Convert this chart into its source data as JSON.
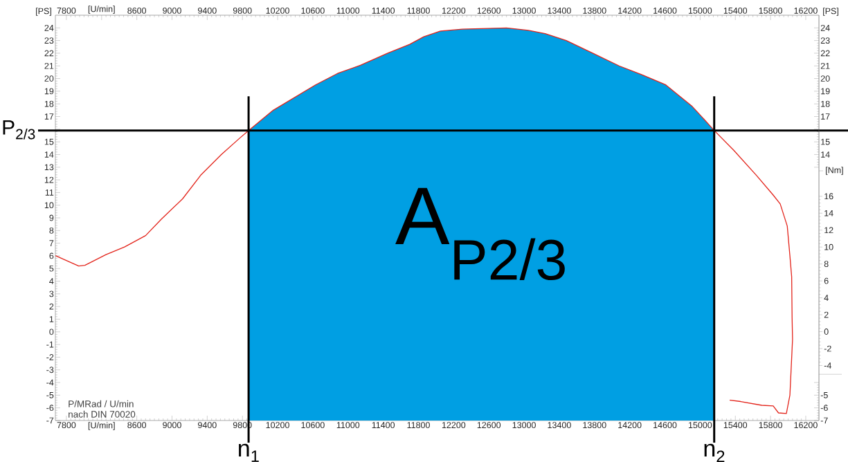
{
  "chart_data": {
    "type": "line",
    "xlim": [
      7675,
      16350
    ],
    "xticks": [
      7800,
      {
        "value": 8200,
        "label": "[U/min]"
      },
      8600,
      9000,
      9400,
      9800,
      10200,
      10600,
      11000,
      11400,
      11800,
      12200,
      12600,
      13000,
      13400,
      13800,
      14200,
      14600,
      15000,
      15400,
      15800,
      16200
    ],
    "x2lim": [
      7675,
      16350
    ],
    "x2ticks": [
      7800,
      {
        "value": 8200,
        "label": "[U/min]"
      },
      8600,
      9000,
      9400,
      9800,
      10200,
      10600,
      11000,
      11400,
      11800,
      12200,
      12600,
      13000,
      13400,
      13800,
      14200,
      14600,
      15000,
      15400,
      15800,
      16200
    ],
    "ylim": [
      -7,
      25
    ],
    "yticks": [
      -7,
      -6,
      -5,
      -4,
      -3,
      -2,
      -1,
      0,
      1,
      2,
      3,
      4,
      5,
      6,
      7,
      8,
      9,
      10,
      11,
      12,
      13,
      14,
      15,
      {
        "value": 16,
        "label": null
      },
      17,
      18,
      19,
      20,
      21,
      22,
      23,
      24
    ],
    "ylabel": "[PS]",
    "y2lim": [
      -7,
      25
    ],
    "y2ticks": [
      -7,
      -6,
      -5,
      {
        "value": -4,
        "label": null
      },
      {
        "value": 13,
        "label": null
      },
      14,
      15,
      {
        "value": 16,
        "label": null
      },
      17,
      18,
      19,
      20,
      21,
      22,
      23,
      24
    ],
    "y2label": "[PS]",
    "y3lim": [
      -10.5,
      37.4
    ],
    "y3ticks": [
      -4,
      -2,
      0,
      2,
      4,
      6,
      8,
      10,
      12,
      14,
      16
    ],
    "y3label": "[Nm]",
    "series": [
      {
        "type": "area",
        "name": "A$_{P2/3}$",
        "color": "#009fe3",
        "x": [
          9870,
          9870,
          10150,
          10630,
          10880,
          11140,
          11450,
          11700,
          11860,
          12050,
          12300,
          12800,
          13050,
          13240,
          13480,
          13780,
          14080,
          14340,
          14610,
          14750,
          14910,
          15030,
          15160,
          15160
        ],
        "values": [
          -7,
          15.9,
          17.5,
          19.5,
          20.4,
          21.05,
          22.0,
          22.7,
          23.3,
          23.75,
          23.9,
          24.0,
          23.8,
          23.55,
          23.0,
          22.0,
          21.0,
          20.3,
          19.5,
          18.7,
          17.8,
          16.9,
          15.9,
          -7
        ]
      },
      {
        "color": "#e3241b",
        "x": [
          7680,
          7940,
          8010,
          8250,
          8460,
          8700,
          8880,
          9120,
          9330,
          9560,
          9770,
          9870,
          10150,
          10630,
          10880,
          11140,
          11450,
          11700,
          11860,
          12050,
          12300,
          12800,
          13050,
          13240,
          13480,
          13780,
          14080,
          14340,
          14610,
          14750,
          14910,
          15030,
          15160,
          15380,
          15640,
          15830,
          15910,
          15990,
          16020,
          16040,
          16045,
          16050,
          16020,
          15980,
          15890,
          15830,
          15700,
          15460,
          15340
        ],
        "values": [
          6.0,
          5.2,
          5.25,
          6.1,
          6.7,
          7.6,
          8.9,
          10.5,
          12.4,
          14.0,
          15.3,
          15.9,
          17.5,
          19.5,
          20.4,
          21.05,
          22.0,
          22.7,
          23.3,
          23.75,
          23.9,
          24.0,
          23.8,
          23.55,
          23.0,
          22.0,
          21.0,
          20.3,
          19.5,
          18.7,
          17.8,
          16.9,
          15.9,
          14.35,
          12.35,
          10.8,
          10.1,
          8.35,
          6.0,
          4.35,
          1.1,
          -0.6,
          -5.0,
          -6.45,
          -6.4,
          -5.85,
          -5.8,
          -5.5,
          -5.4
        ]
      }
    ],
    "ref_lines": [
      {
        "axis": "y",
        "value": 15.9,
        "label": "P$_{2/3}$",
        "color": "#000000"
      },
      {
        "axis": "x",
        "value": 9870,
        "label": "n$_{1}$",
        "color": "#000000"
      },
      {
        "axis": "x",
        "value": 15160,
        "label": "n$_{2}$",
        "color": "#000000"
      }
    ],
    "annotations": [
      "P/MRad / U/min",
      "nach DIN 70020"
    ]
  }
}
